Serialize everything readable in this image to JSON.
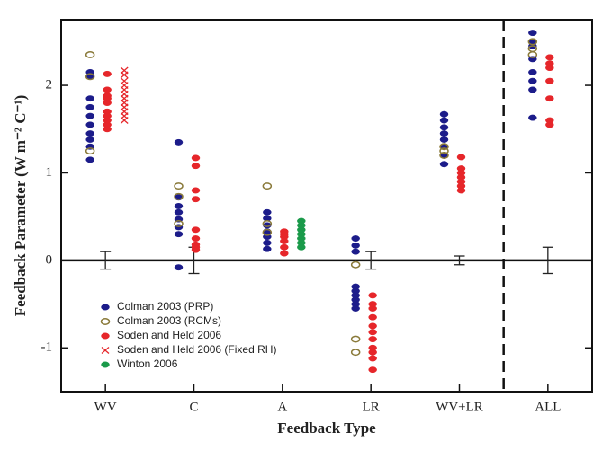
{
  "chart_data": {
    "type": "dot",
    "x_label": "Feedback Type",
    "y_label": "Feedback Parameter (W m⁻² C⁻¹)",
    "categories": [
      "WV",
      "C",
      "A",
      "LR",
      "WV+LR",
      "ALL"
    ],
    "ylim": [
      -1.5,
      2.75
    ],
    "yticks": [
      -1,
      0,
      1,
      2
    ],
    "hline": 0,
    "legend": "lower left",
    "series": [
      {
        "name": "Colman 2003 (PRP)",
        "color": "#1c1c8a",
        "marker": "filled",
        "values": [
          [
            2.15,
            2.1,
            1.85,
            1.75,
            1.65,
            1.55,
            1.45,
            1.38,
            1.3,
            1.15
          ],
          [
            1.35,
            0.72,
            0.62,
            0.55,
            0.47,
            0.38,
            0.3,
            -0.08
          ],
          [
            0.55,
            0.48,
            0.4,
            0.33,
            0.27,
            0.2,
            0.13
          ],
          [
            0.25,
            0.17,
            0.1,
            -0.3,
            -0.35,
            -0.4,
            -0.45,
            -0.5,
            -0.55
          ],
          [
            1.67,
            1.6,
            1.52,
            1.45,
            1.38,
            1.3,
            1.2,
            1.1
          ],
          [
            2.6,
            2.5,
            2.45,
            2.3,
            2.15,
            2.05,
            1.95,
            1.63
          ]
        ]
      },
      {
        "name": "Colman 2003 (RCMs)",
        "color": "#8a7a3a",
        "marker": "open",
        "values": [
          [
            2.35,
            2.1,
            1.25
          ],
          [
            0.85,
            0.73,
            0.42
          ],
          [
            0.85,
            0.42,
            0.32
          ],
          [
            -0.05,
            -0.9,
            -1.05
          ],
          [
            1.3,
            1.25,
            1.2
          ],
          [
            2.5,
            2.42,
            2.35
          ]
        ]
      },
      {
        "name": "Soden and Held 2006",
        "color": "#e6262a",
        "marker": "filled",
        "values": [
          [
            2.13,
            1.95,
            1.88,
            1.85,
            1.8,
            1.7,
            1.65,
            1.6,
            1.55,
            1.5
          ],
          [
            1.17,
            1.08,
            0.8,
            0.7,
            0.35,
            0.25,
            0.18,
            0.15,
            0.12
          ],
          [
            0.33,
            0.3,
            0.27,
            0.22,
            0.15,
            0.08
          ],
          [
            -0.4,
            -0.5,
            -0.55,
            -0.65,
            -0.75,
            -0.82,
            -0.9,
            -1.0,
            -1.05,
            -1.12,
            -1.25
          ],
          [
            1.18,
            1.05,
            1.0,
            0.95,
            0.9,
            0.85,
            0.8
          ],
          [
            2.32,
            2.25,
            2.2,
            2.05,
            1.85,
            1.6,
            1.55
          ]
        ]
      },
      {
        "name": "Soden and Held 2006 (Fixed RH)",
        "color": "#e6262a",
        "marker": "x",
        "values": [
          [
            2.17,
            2.12,
            2.05,
            2.0,
            1.95,
            1.9,
            1.85,
            1.8,
            1.75,
            1.7,
            1.65,
            1.6
          ],
          [],
          [],
          [],
          [],
          []
        ]
      },
      {
        "name": "Winton 2006",
        "color": "#1a9a4a",
        "marker": "filled",
        "values": [
          [],
          [],
          [
            0.45,
            0.4,
            0.35,
            0.3,
            0.25,
            0.2,
            0.15
          ],
          [],
          [],
          []
        ]
      }
    ],
    "error_bars": {
      "values": [
        0,
        0,
        null,
        0,
        0,
        0
      ],
      "errors": [
        0.1,
        0.15,
        null,
        0.1,
        0.05,
        0.15
      ]
    }
  }
}
